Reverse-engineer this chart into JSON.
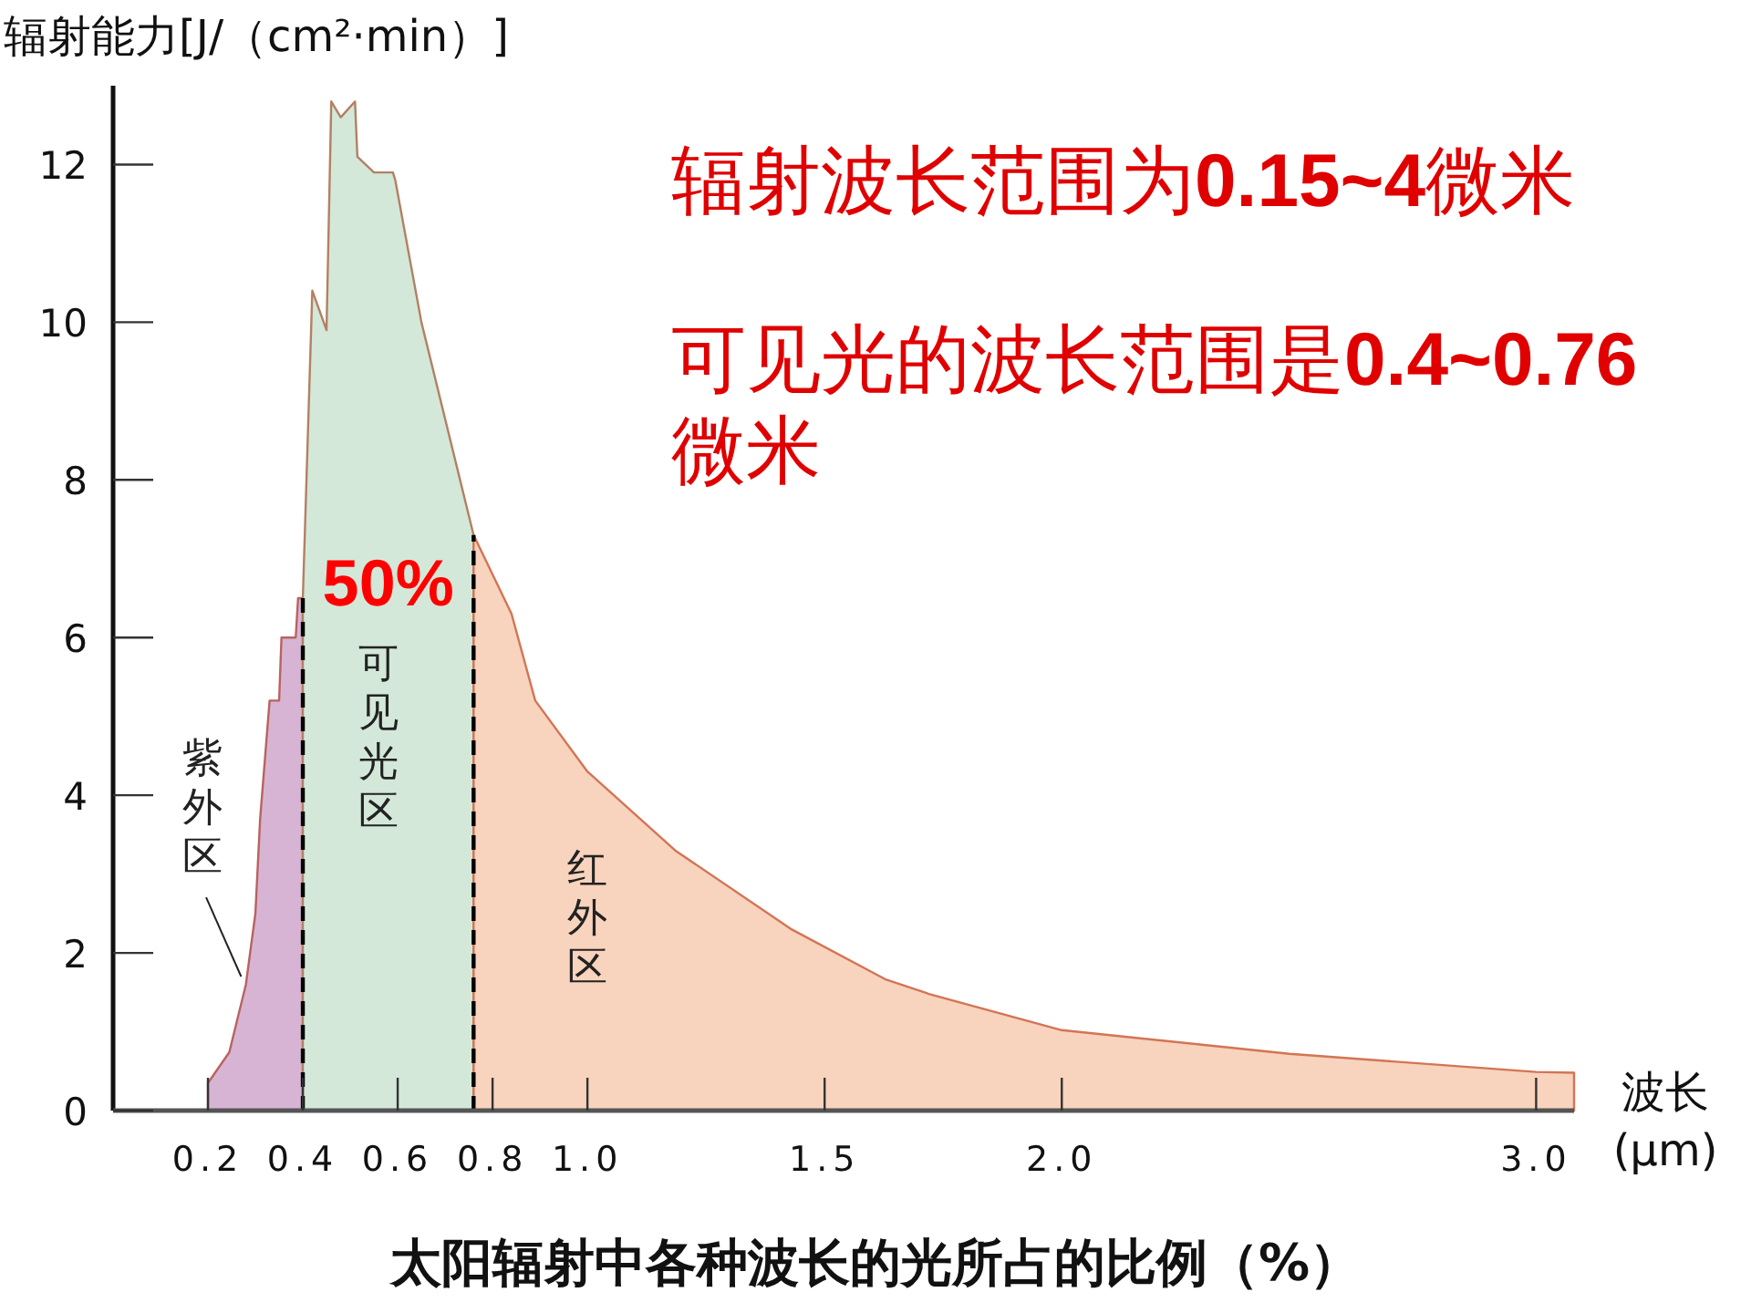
{
  "chart_data": {
    "type": "area",
    "title": "太阳辐射中各种波长的光所占的比例（%）",
    "ylabel": "辐射能力[J/（cm²·min）]",
    "xlabel": "波长 (μm)",
    "xlim": [
      0,
      3.08
    ],
    "ylim": [
      0,
      13
    ],
    "xticks": [
      0.2,
      0.4,
      0.6,
      0.8,
      {
        "value": 1,
        "label": "1.0"
      },
      1.5,
      {
        "value": 2,
        "label": "2.0"
      },
      {
        "value": 3,
        "label": "3.0"
      }
    ],
    "yticks": [
      0,
      2,
      4,
      6,
      8,
      10,
      12
    ],
    "grid": false,
    "series": [
      {
        "name": "紫外区",
        "color": "#d8b4d4",
        "x": [
          0.2,
          0.2,
          0.245,
          0.28,
          0.3,
          0.31,
          0.33,
          0.35,
          0.355,
          0.385,
          0.39,
          0.4
        ],
        "values": [
          0,
          0.35,
          0.74,
          1.6,
          2.5,
          3.7,
          5.2,
          5.2,
          6.0,
          6.0,
          6.5,
          6.5
        ]
      },
      {
        "name": "可见光区",
        "color": "#d3e8d9",
        "x": [
          0.4,
          0.42,
          0.45,
          0.46,
          0.48,
          0.51,
          0.515,
          0.55,
          0.59,
          0.595,
          0.65,
          0.76
        ],
        "values": [
          6.5,
          10.4,
          9.9,
          12.8,
          12.6,
          12.8,
          12.1,
          11.9,
          11.9,
          11.8,
          10.0,
          7.3
        ]
      },
      {
        "name": "红外区",
        "color": "#f8d3bd",
        "x": [
          0.76,
          0.84,
          0.89,
          1.0,
          1.185,
          1.43,
          1.63,
          1.72,
          2.0,
          2.48,
          3.0,
          3.08
        ],
        "values": [
          7.3,
          6.3,
          5.2,
          4.3,
          3.3,
          2.3,
          1.66,
          1.48,
          1.02,
          0.72,
          0.49,
          0.48
        ]
      }
    ],
    "ref_lines": [
      {
        "axis": "x",
        "value": 0.4,
        "color": "#000000",
        "line_style": "dashed"
      },
      {
        "axis": "x",
        "value": 0.76,
        "color": "#000000",
        "line_style": "dashed"
      }
    ],
    "annotations": [
      "辐射波长范围为**0.15~4**微米",
      "可见光的波长范围是**0.4~0.76**微米",
      "50%"
    ]
  }
}
